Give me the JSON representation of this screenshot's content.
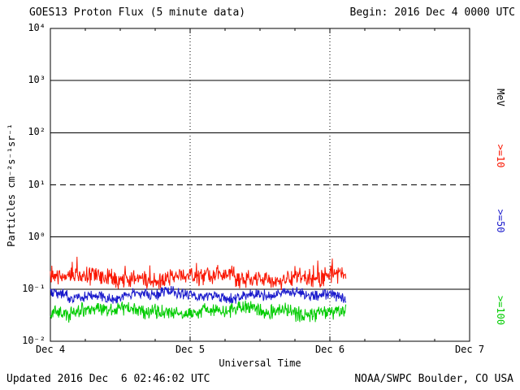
{
  "header": {
    "title": "GOES13 Proton Flux (5 minute data)",
    "begin_label": "Begin: 2016 Dec 4 0000 UTC"
  },
  "footer": {
    "updated": "Updated 2016 Dec  6 02:46:02 UTC",
    "source": "NOAA/SWPC Boulder, CO USA"
  },
  "chart_data": {
    "type": "line",
    "title": "GOES13 Proton Flux (5 minute data)",
    "xlabel": "Universal Time",
    "ylabel": "Particles cm⁻²s⁻¹sr⁻¹",
    "x_start": "2016 Dec 4 0000 UTC",
    "x_end": "2016 Dec 7 0000 UTC",
    "x_ticks": [
      "Dec 4",
      "Dec 5",
      "Dec 6",
      "Dec 7"
    ],
    "y_scale": "log10",
    "ylim": [
      0.01,
      10000
    ],
    "y_tick_exponents": [
      4,
      3,
      2,
      1,
      0,
      -1,
      -2
    ],
    "y_tick_labels": [
      "10⁴",
      "10³",
      "10²",
      "10¹",
      "10⁰",
      "10⁻¹",
      "10⁻²"
    ],
    "solid_hlines_exp": [
      3,
      2,
      0,
      -1
    ],
    "dashed_hlines_exp": [
      1
    ],
    "dotted_vlines_days": [
      1,
      2
    ],
    "legend_unit": "MeV",
    "axis_color": "#000000",
    "series": [
      {
        "name": ">=10 MeV proton flux",
        "label": ">=10",
        "color": "#fa1500",
        "base_log10": -0.78,
        "noise_log10": 0.2,
        "spike_log10": 0.15,
        "approx_range": [
          0.09,
          0.35
        ]
      },
      {
        "name": ">=50 MeV proton flux",
        "label": ">=50",
        "color": "#1a1acc",
        "base_log10": -1.12,
        "noise_log10": 0.13,
        "spike_log10": 0,
        "approx_range": [
          0.05,
          0.1
        ]
      },
      {
        "name": ">=100 MeV proton flux",
        "label": ">=100",
        "color": "#00cc00",
        "base_log10": -1.42,
        "noise_log10": 0.17,
        "spike_log10": 0,
        "approx_range": [
          0.02,
          0.07
        ]
      }
    ],
    "data_start_day": 0,
    "data_end_day": 2.115,
    "sample_minutes": 5,
    "seed": 20161204
  }
}
